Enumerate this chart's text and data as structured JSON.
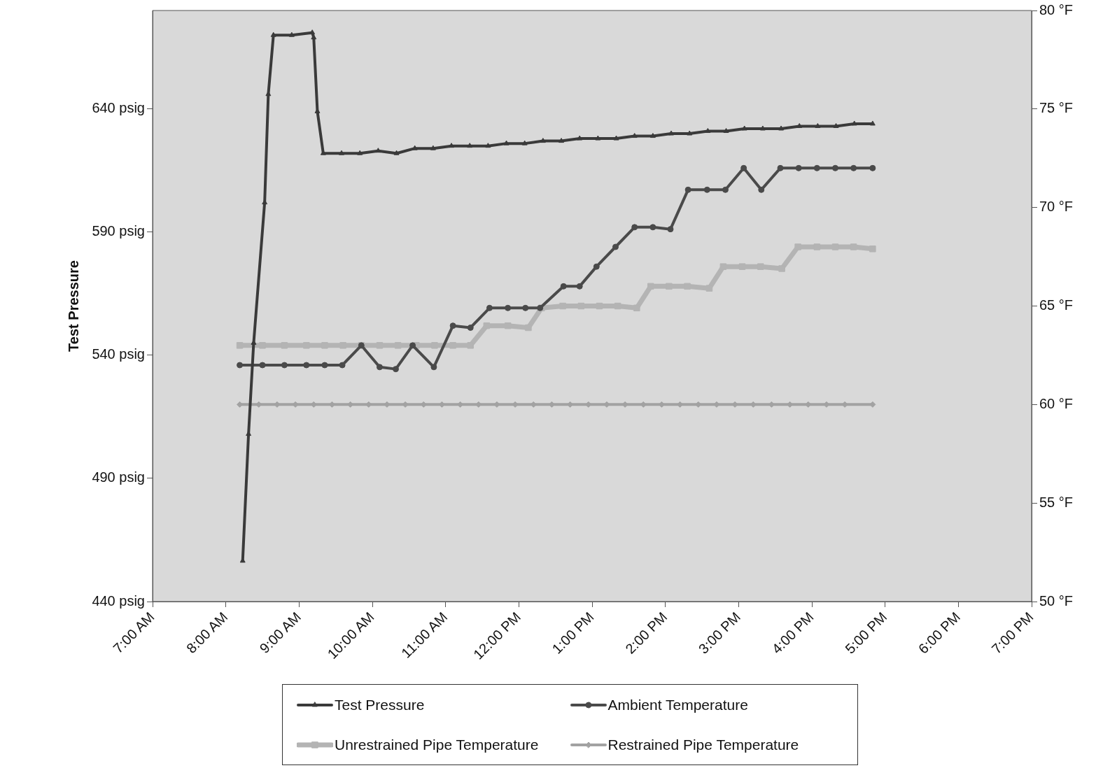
{
  "chart_data": {
    "type": "line",
    "ylabel": "Test Pressure",
    "grid": false,
    "legend": "bottom",
    "xlim": [
      7,
      19
    ],
    "xticks": [
      {
        "value": 7,
        "label": "7:00 AM"
      },
      {
        "value": 8,
        "label": "8:00 AM"
      },
      {
        "value": 9,
        "label": "9:00 AM"
      },
      {
        "value": 10,
        "label": "10:00 AM"
      },
      {
        "value": 11,
        "label": "11:00 AM"
      },
      {
        "value": 12,
        "label": "12:00 PM"
      },
      {
        "value": 13,
        "label": "1:00 PM"
      },
      {
        "value": 14,
        "label": "2:00 PM"
      },
      {
        "value": 15,
        "label": "3:00 PM"
      },
      {
        "value": 16,
        "label": "4:00 PM"
      },
      {
        "value": 17,
        "label": "5:00 PM"
      },
      {
        "value": 18,
        "label": "6:00 PM"
      },
      {
        "value": 19,
        "label": "7:00 PM"
      }
    ],
    "ylim": [
      440,
      680
    ],
    "yticks": [
      {
        "value": 440,
        "label": "440 psig"
      },
      {
        "value": 490,
        "label": "490 psig"
      },
      {
        "value": 540,
        "label": "540 psig"
      },
      {
        "value": 590,
        "label": "590 psig"
      },
      {
        "value": 640,
        "label": "640 psig"
      }
    ],
    "y2lim": [
      50,
      80
    ],
    "y2ticks": [
      {
        "value": 50,
        "label": "50 °F"
      },
      {
        "value": 55,
        "label": "55 °F"
      },
      {
        "value": 60,
        "label": "60 °F"
      },
      {
        "value": 65,
        "label": "65 °F"
      },
      {
        "value": 70,
        "label": "70 °F"
      },
      {
        "value": 75,
        "label": "75 °F"
      },
      {
        "value": 80,
        "label": "80 °F"
      }
    ],
    "series": [
      {
        "name": "Test Pressure",
        "color": "#3a3a3a",
        "marker": "triangle",
        "x": [
          8.23,
          8.31,
          8.38,
          8.53,
          8.58,
          8.65,
          8.9,
          9.18,
          9.2,
          9.25,
          9.33,
          9.58,
          9.83,
          10.08,
          10.33,
          10.58,
          10.83,
          11.08,
          11.33,
          11.58,
          11.83,
          12.08,
          12.33,
          12.58,
          12.83,
          13.08,
          13.33,
          13.58,
          13.83,
          14.08,
          14.33,
          14.58,
          14.83,
          15.08,
          15.33,
          15.58,
          15.83,
          16.08,
          16.33,
          16.58,
          16.83
        ],
        "values": [
          456.5,
          508,
          545,
          602,
          646,
          670,
          670,
          671,
          669,
          639,
          622,
          622,
          622,
          623,
          622,
          624,
          624,
          625,
          625,
          625,
          626,
          626,
          627,
          627,
          628,
          628,
          628,
          629,
          629,
          630,
          630,
          631,
          631,
          632,
          632,
          632,
          633,
          633,
          633,
          634,
          634
        ]
      },
      {
        "name": "Ambient Temperature",
        "color": "#4a4a4a",
        "marker": "circle",
        "axis": "y2",
        "x": [
          8.19,
          8.5,
          8.8,
          9.1,
          9.35,
          9.59,
          9.85,
          10.1,
          10.32,
          10.55,
          10.84,
          11.1,
          11.34,
          11.6,
          11.85,
          12.09,
          12.29,
          12.61,
          12.83,
          13.06,
          13.32,
          13.58,
          13.83,
          14.07,
          14.31,
          14.57,
          14.82,
          15.07,
          15.31,
          15.57,
          15.82,
          16.07,
          16.32,
          16.57,
          16.83
        ],
        "values": [
          62,
          62,
          62,
          62,
          62,
          62,
          63,
          61.9,
          61.8,
          63,
          61.9,
          64,
          63.9,
          64.9,
          64.9,
          64.9,
          64.9,
          66,
          66,
          67,
          68,
          69,
          69,
          68.9,
          70.9,
          70.9,
          70.9,
          72,
          70.9,
          72,
          72,
          72,
          72,
          72,
          72
        ]
      },
      {
        "name": "Unrestrained Pipe Temperature",
        "color": "#b4b4b4",
        "marker": "square",
        "axis": "y2",
        "x": [
          8.19,
          8.5,
          8.8,
          9.1,
          9.35,
          9.6,
          9.85,
          10.1,
          10.35,
          10.6,
          10.85,
          11.1,
          11.34,
          11.56,
          11.85,
          12.13,
          12.31,
          12.6,
          12.85,
          13.1,
          13.35,
          13.61,
          13.8,
          14.05,
          14.3,
          14.6,
          14.79,
          15.05,
          15.3,
          15.59,
          15.81,
          16.07,
          16.32,
          16.57,
          16.83
        ],
        "values": [
          63,
          63,
          63,
          63,
          63,
          63,
          63,
          63,
          63,
          63,
          63,
          63,
          63,
          64,
          64,
          63.9,
          64.9,
          65,
          65,
          65,
          65,
          64.9,
          66,
          66,
          66,
          65.9,
          67,
          67,
          67,
          66.9,
          68,
          68,
          68,
          68,
          67.9
        ]
      },
      {
        "name": "Restrained Pipe Temperature",
        "color": "#a2a2a2",
        "marker": "diamond",
        "axis": "y2",
        "x": [
          8.19,
          8.45,
          8.7,
          8.95,
          9.2,
          9.45,
          9.7,
          9.95,
          10.2,
          10.45,
          10.7,
          10.95,
          11.2,
          11.45,
          11.7,
          11.95,
          12.2,
          12.45,
          12.7,
          12.95,
          13.2,
          13.45,
          13.7,
          13.95,
          14.2,
          14.45,
          14.7,
          14.95,
          15.2,
          15.45,
          15.7,
          15.95,
          16.2,
          16.45,
          16.83
        ],
        "values": [
          60,
          60,
          60,
          60,
          60,
          60,
          60,
          60,
          60,
          60,
          60,
          60,
          60,
          60,
          60,
          60,
          60,
          60,
          60,
          60,
          60,
          60,
          60,
          60,
          60,
          60,
          60,
          60,
          60,
          60,
          60,
          60,
          60,
          60,
          60
        ]
      }
    ]
  }
}
